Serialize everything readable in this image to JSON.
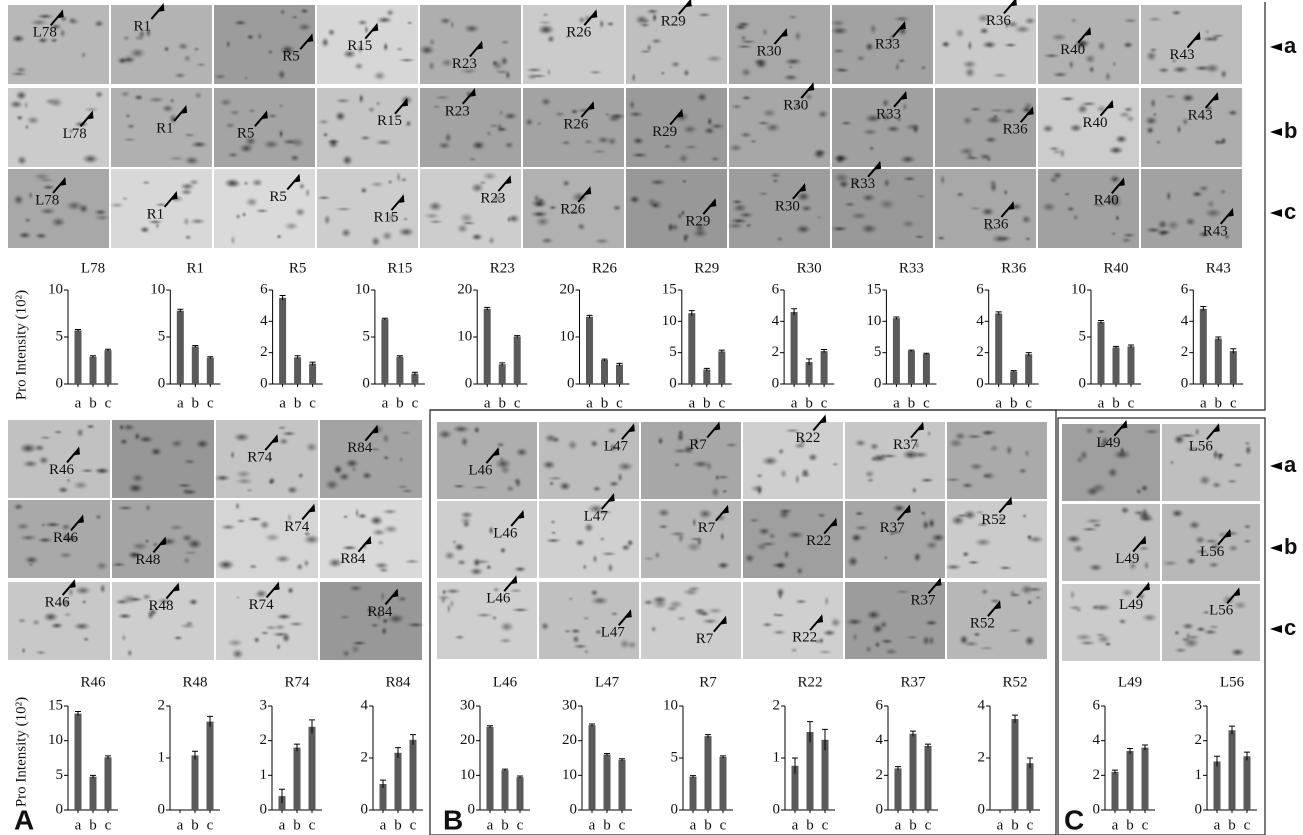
{
  "y_axis_label": "Pro  Intensity (10²)",
  "row_labels": [
    "a",
    "b",
    "c"
  ],
  "panel_letters": [
    "A",
    "B",
    "C"
  ],
  "gel_spots": [
    [
      "L78",
      "L78",
      "L78"
    ],
    [
      "R1",
      "R1",
      "R1"
    ],
    [
      "R5",
      "R5",
      "R5"
    ],
    [
      "R15",
      "R15",
      "R15"
    ],
    [
      "R23",
      "R23",
      "R23"
    ],
    [
      "R26",
      "R26",
      "R26"
    ],
    [
      "R29",
      "R29",
      "R29"
    ],
    [
      "R30",
      "R30",
      "R30"
    ],
    [
      "R33",
      "R33",
      "R33"
    ],
    [
      "R36",
      "R36",
      "R36"
    ],
    [
      "R40",
      "R40",
      "R40"
    ],
    [
      "R43",
      "R43",
      "R43"
    ],
    [
      "R46",
      "R46",
      "R46"
    ],
    [
      null,
      "R48",
      "R48"
    ],
    [
      "R74",
      "R74",
      "R74"
    ],
    [
      "R84",
      "R84",
      "R84"
    ],
    [
      "L46",
      "L46",
      "L46"
    ],
    [
      "L47",
      "L47",
      "L47"
    ],
    [
      "R7",
      "R7",
      "R7"
    ],
    [
      "R22",
      "R22",
      "R22"
    ],
    [
      "R37",
      "R37",
      "R37"
    ],
    [
      null,
      "R52",
      "R52"
    ],
    [
      "L49",
      "L49",
      "L49"
    ],
    [
      "L56",
      "L56",
      "L56"
    ]
  ],
  "chart_data": [
    {
      "type": "bar",
      "title": "L78",
      "categories": [
        "a",
        "b",
        "c"
      ],
      "values": [
        5.7,
        2.9,
        3.6
      ],
      "errors": [
        0.1,
        0.1,
        0.1
      ],
      "color": "#5a5a5a",
      "ylim": [
        0,
        10
      ],
      "yticks": [
        0,
        5,
        10
      ]
    },
    {
      "type": "bar",
      "title": "R1",
      "categories": [
        "a",
        "b",
        "c"
      ],
      "values": [
        7.8,
        4.0,
        2.8
      ],
      "errors": [
        0.15,
        0.1,
        0.1
      ],
      "color": "#5a5a5a",
      "ylim": [
        0,
        10
      ],
      "yticks": [
        0,
        5,
        10
      ]
    },
    {
      "type": "bar",
      "title": "R5",
      "categories": [
        "a",
        "b",
        "c"
      ],
      "values": [
        5.5,
        1.7,
        1.3
      ],
      "errors": [
        0.15,
        0.1,
        0.1
      ],
      "color": "#5a5a5a",
      "ylim": [
        0,
        6
      ],
      "yticks": [
        0,
        2,
        4,
        6
      ]
    },
    {
      "type": "bar",
      "title": "R15",
      "categories": [
        "a",
        "b",
        "c"
      ],
      "values": [
        6.9,
        2.9,
        1.1
      ],
      "errors": [
        0.1,
        0.1,
        0.15
      ],
      "color": "#5a5a5a",
      "ylim": [
        0,
        10
      ],
      "yticks": [
        0,
        5,
        10
      ]
    },
    {
      "type": "bar",
      "title": "R23",
      "categories": [
        "a",
        "b",
        "c"
      ],
      "values": [
        16,
        4.2,
        10.1
      ],
      "errors": [
        0.3,
        0.3,
        0.2
      ],
      "color": "#5a5a5a",
      "ylim": [
        0,
        20
      ],
      "yticks": [
        0,
        10,
        20
      ]
    },
    {
      "type": "bar",
      "title": "R26",
      "categories": [
        "a",
        "b",
        "c"
      ],
      "values": [
        14.3,
        5.1,
        4.1
      ],
      "errors": [
        0.3,
        0.2,
        0.3
      ],
      "color": "#5a5a5a",
      "ylim": [
        0,
        20
      ],
      "yticks": [
        0,
        10,
        20
      ]
    },
    {
      "type": "bar",
      "title": "R29",
      "categories": [
        "a",
        "b",
        "c"
      ],
      "values": [
        11.3,
        2.3,
        5.2
      ],
      "errors": [
        0.4,
        0.2,
        0.2
      ],
      "color": "#5a5a5a",
      "ylim": [
        0,
        15
      ],
      "yticks": [
        0,
        5,
        10,
        15
      ]
    },
    {
      "type": "bar",
      "title": "R30",
      "categories": [
        "a",
        "b",
        "c"
      ],
      "values": [
        4.6,
        1.4,
        2.1
      ],
      "errors": [
        0.2,
        0.2,
        0.1
      ],
      "color": "#5a5a5a",
      "ylim": [
        0,
        6
      ],
      "yticks": [
        0,
        2,
        4,
        6
      ]
    },
    {
      "type": "bar",
      "title": "R33",
      "categories": [
        "a",
        "b",
        "c"
      ],
      "values": [
        10.5,
        5.3,
        4.8
      ],
      "errors": [
        0.2,
        0.1,
        0.1
      ],
      "color": "#5a5a5a",
      "ylim": [
        0,
        15
      ],
      "yticks": [
        0,
        5,
        10,
        15
      ]
    },
    {
      "type": "bar",
      "title": "R36",
      "categories": [
        "a",
        "b",
        "c"
      ],
      "values": [
        4.5,
        0.8,
        1.9
      ],
      "errors": [
        0.1,
        0.05,
        0.1
      ],
      "color": "#5a5a5a",
      "ylim": [
        0,
        6
      ],
      "yticks": [
        0,
        2,
        4,
        6
      ]
    },
    {
      "type": "bar",
      "title": "R40",
      "categories": [
        "a",
        "b",
        "c"
      ],
      "values": [
        6.6,
        3.9,
        4.0
      ],
      "errors": [
        0.15,
        0.1,
        0.15
      ],
      "color": "#5a5a5a",
      "ylim": [
        0,
        10
      ],
      "yticks": [
        0,
        5,
        10
      ]
    },
    {
      "type": "bar",
      "title": "R43",
      "categories": [
        "a",
        "b",
        "c"
      ],
      "values": [
        4.8,
        2.9,
        2.1
      ],
      "errors": [
        0.15,
        0.1,
        0.15
      ],
      "color": "#5a5a5a",
      "ylim": [
        0,
        6
      ],
      "yticks": [
        0,
        2,
        4,
        6
      ]
    },
    {
      "type": "bar",
      "title": "R46",
      "categories": [
        "a",
        "b",
        "c"
      ],
      "values": [
        13.9,
        4.8,
        7.6
      ],
      "errors": [
        0.3,
        0.2,
        0.2
      ],
      "color": "#5a5a5a",
      "ylim": [
        0,
        15
      ],
      "yticks": [
        0,
        5,
        10,
        15
      ]
    },
    {
      "type": "bar",
      "title": "R48",
      "categories": [
        "a",
        "b",
        "c"
      ],
      "values": [
        0,
        1.05,
        1.7
      ],
      "errors": [
        0,
        0.08,
        0.1
      ],
      "color": "#5a5a5a",
      "ylim": [
        0,
        2
      ],
      "yticks": [
        0,
        1,
        2
      ]
    },
    {
      "type": "bar",
      "title": "R74",
      "categories": [
        "a",
        "b",
        "c"
      ],
      "values": [
        0.4,
        1.8,
        2.4
      ],
      "errors": [
        0.2,
        0.1,
        0.2
      ],
      "color": "#5a5a5a",
      "ylim": [
        0,
        3
      ],
      "yticks": [
        0,
        1,
        2,
        3
      ]
    },
    {
      "type": "bar",
      "title": "R84",
      "categories": [
        "a",
        "b",
        "c"
      ],
      "values": [
        1.0,
        2.2,
        2.7
      ],
      "errors": [
        0.15,
        0.2,
        0.2
      ],
      "color": "#5a5a5a",
      "ylim": [
        0,
        4
      ],
      "yticks": [
        0,
        2,
        4
      ]
    },
    {
      "type": "bar",
      "title": "L46",
      "categories": [
        "a",
        "b",
        "c"
      ],
      "values": [
        24,
        11.5,
        9.5
      ],
      "errors": [
        0.3,
        0.3,
        0.3
      ],
      "color": "#5a5a5a",
      "ylim": [
        0,
        30
      ],
      "yticks": [
        0,
        10,
        20,
        30
      ]
    },
    {
      "type": "bar",
      "title": "L47",
      "categories": [
        "a",
        "b",
        "c"
      ],
      "values": [
        24.5,
        16,
        14.5
      ],
      "errors": [
        0.3,
        0.3,
        0.3
      ],
      "color": "#5a5a5a",
      "ylim": [
        0,
        30
      ],
      "yticks": [
        0,
        10,
        20,
        30
      ]
    },
    {
      "type": "bar",
      "title": "R7",
      "categories": [
        "a",
        "b",
        "c"
      ],
      "values": [
        3.2,
        7.1,
        5.1
      ],
      "errors": [
        0.1,
        0.15,
        0.1
      ],
      "color": "#5a5a5a",
      "ylim": [
        0,
        10
      ],
      "yticks": [
        0,
        5,
        10
      ]
    },
    {
      "type": "bar",
      "title": "R22",
      "categories": [
        "a",
        "b",
        "c"
      ],
      "values": [
        0.85,
        1.5,
        1.35
      ],
      "errors": [
        0.15,
        0.2,
        0.2
      ],
      "color": "#5a5a5a",
      "ylim": [
        0,
        2
      ],
      "yticks": [
        0,
        1,
        2
      ]
    },
    {
      "type": "bar",
      "title": "R37",
      "categories": [
        "a",
        "b",
        "c"
      ],
      "values": [
        2.4,
        4.4,
        3.7
      ],
      "errors": [
        0.1,
        0.15,
        0.1
      ],
      "color": "#5a5a5a",
      "ylim": [
        0,
        6
      ],
      "yticks": [
        0,
        2,
        4,
        6
      ]
    },
    {
      "type": "bar",
      "title": "R52",
      "categories": [
        "a",
        "b",
        "c"
      ],
      "values": [
        0,
        3.5,
        1.8
      ],
      "errors": [
        0,
        0.15,
        0.2
      ],
      "color": "#5a5a5a",
      "ylim": [
        0,
        4
      ],
      "yticks": [
        0,
        2,
        4
      ]
    },
    {
      "type": "bar",
      "title": "L49",
      "categories": [
        "a",
        "b",
        "c"
      ],
      "values": [
        2.2,
        3.4,
        3.6
      ],
      "errors": [
        0.1,
        0.15,
        0.15
      ],
      "color": "#5a5a5a",
      "ylim": [
        0,
        6
      ],
      "yticks": [
        0,
        2,
        4,
        6
      ]
    },
    {
      "type": "bar",
      "title": "L56",
      "categories": [
        "a",
        "b",
        "c"
      ],
      "values": [
        1.4,
        2.3,
        1.55
      ],
      "errors": [
        0.15,
        0.12,
        0.12
      ],
      "color": "#5a5a5a",
      "ylim": [
        0,
        3
      ],
      "yticks": [
        0,
        1,
        2,
        3
      ]
    }
  ]
}
